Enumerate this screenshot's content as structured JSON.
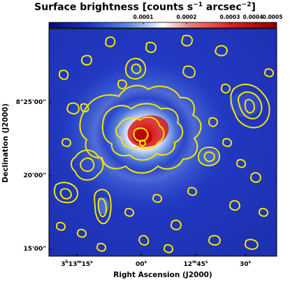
{
  "title_main": "Surface brightness [counts s",
  "title_sup1": "−1",
  "title_mid": " arcsec",
  "title_sup2": "−2",
  "title_end": "]",
  "colorbar": {
    "ticks": [
      {
        "label": "0.0001",
        "value": 0.0001
      },
      {
        "label": "0.0002",
        "value": 0.0002
      },
      {
        "label": "0.0003",
        "value": 0.0003
      },
      {
        "label": "0.0004",
        "value": 0.0004
      },
      {
        "label": "0.0005",
        "value": 0.0005
      }
    ],
    "colors": [
      "#0a0a6e",
      "#1a33cc",
      "#5a8be0",
      "#ffffff",
      "#f08080",
      "#e02020",
      "#8c0000"
    ]
  },
  "axes": {
    "xlabel": "Right Ascension (J2000)",
    "ylabel": "Declination (J2000)",
    "yticks": [
      "8°25'00\"",
      "20'00\"",
      "15'00\""
    ],
    "xticks": [
      {
        "main": "3",
        "s1": "h",
        "mid": "13",
        "s2": "m",
        "end": "15",
        "s3": "s"
      },
      {
        "main": "00",
        "s3": "s"
      },
      {
        "main": "12",
        "s2": "m",
        "end": "45",
        "s3": "s"
      },
      {
        "main": "30",
        "s3": "s"
      }
    ]
  },
  "contour_color": "#f2e600"
}
